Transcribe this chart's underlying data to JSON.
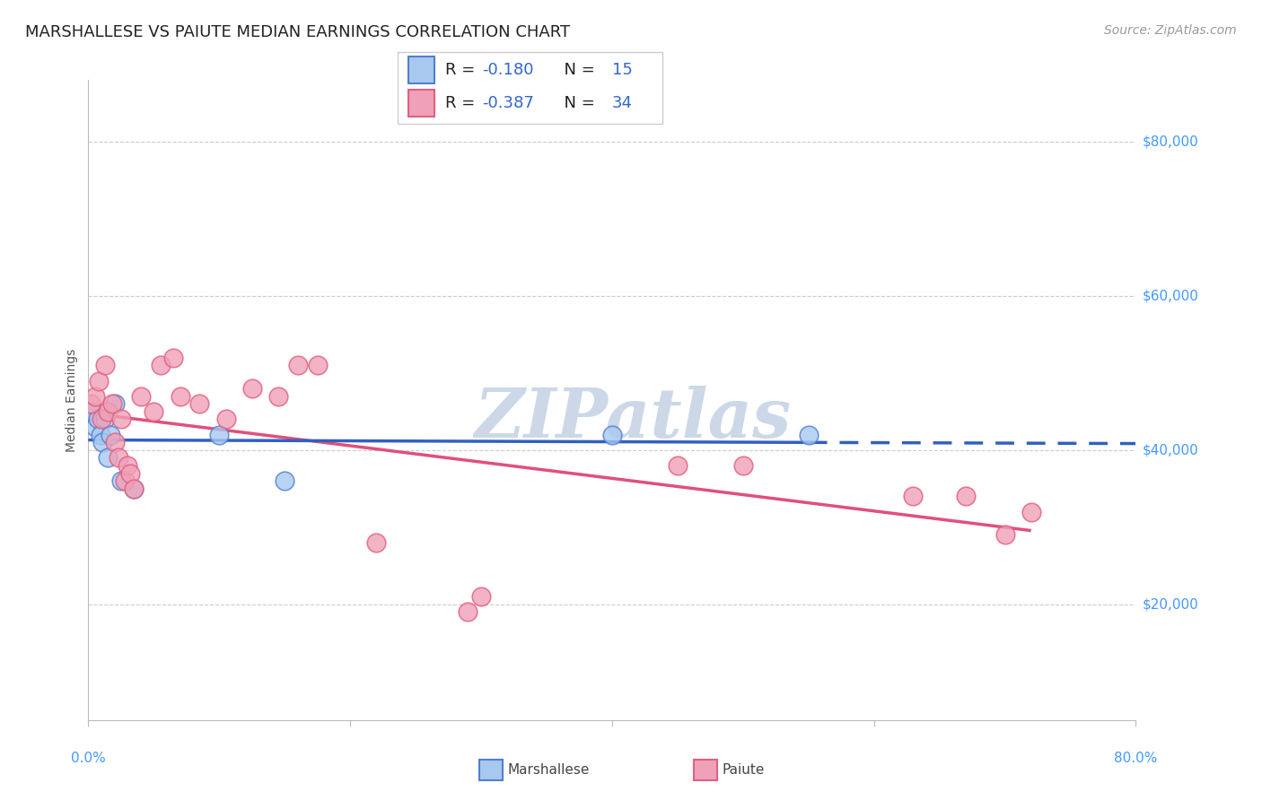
{
  "title": "MARSHALLESE VS PAIUTE MEDIAN EARNINGS CORRELATION CHART",
  "source": "Source: ZipAtlas.com",
  "ylabel": "Median Earnings",
  "y_ticks": [
    20000,
    40000,
    60000,
    80000
  ],
  "y_tick_labels": [
    "$20,000",
    "$40,000",
    "$60,000",
    "$80,000"
  ],
  "x_min": 0.0,
  "x_max": 80.0,
  "y_min": 5000,
  "y_max": 88000,
  "marshallese_R": -0.18,
  "marshallese_N": 15,
  "paiute_R": -0.387,
  "paiute_N": 34,
  "marshallese_color": "#a8c8f0",
  "paiute_color": "#f0a0b8",
  "marshallese_edge_color": "#5080d0",
  "paiute_edge_color": "#e06080",
  "marshallese_line_color": "#3060c0",
  "paiute_line_color": "#e0507a",
  "background_color": "#ffffff",
  "grid_color": "#cccccc",
  "watermark_text": "ZIPatlas",
  "watermark_color": "#ccd8e8",
  "marshallese_x": [
    0.3,
    0.5,
    0.7,
    0.9,
    1.1,
    1.3,
    1.5,
    1.7,
    2.0,
    2.5,
    3.5,
    10.0,
    15.0,
    40.0,
    55.0
  ],
  "marshallese_y": [
    45000,
    43000,
    44000,
    42000,
    41000,
    44000,
    39000,
    42000,
    46000,
    36000,
    35000,
    42000,
    36000,
    42000,
    42000
  ],
  "paiute_x": [
    0.2,
    0.5,
    0.8,
    1.0,
    1.3,
    1.5,
    1.8,
    2.0,
    2.3,
    2.5,
    2.8,
    3.0,
    3.2,
    3.5,
    4.0,
    5.0,
    5.5,
    6.5,
    7.0,
    8.5,
    10.5,
    12.5,
    14.5,
    16.0,
    17.5,
    22.0,
    29.0,
    30.0,
    45.0,
    50.0,
    63.0,
    67.0,
    70.0,
    72.0
  ],
  "paiute_y": [
    46000,
    47000,
    49000,
    44000,
    51000,
    45000,
    46000,
    41000,
    39000,
    44000,
    36000,
    38000,
    37000,
    35000,
    47000,
    45000,
    51000,
    52000,
    47000,
    46000,
    44000,
    48000,
    47000,
    51000,
    51000,
    28000,
    19000,
    21000,
    38000,
    38000,
    34000,
    34000,
    29000,
    32000
  ],
  "title_fontsize": 13,
  "axis_label_fontsize": 10,
  "tick_fontsize": 11,
  "legend_fontsize": 13,
  "source_fontsize": 10,
  "watermark_fontsize": 55
}
